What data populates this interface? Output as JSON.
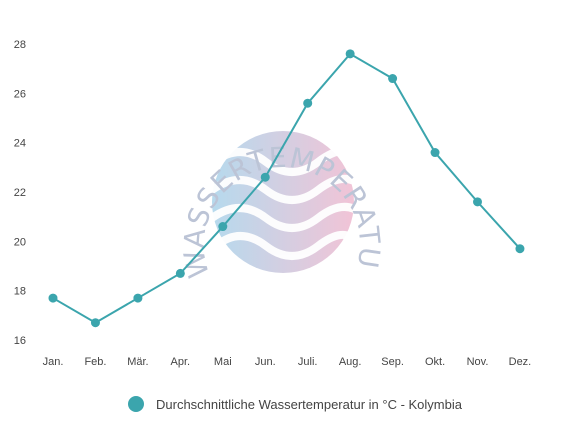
{
  "chart_data": {
    "type": "line",
    "categories": [
      "Jan.",
      "Feb.",
      "Mär.",
      "Apr.",
      "Mai",
      "Jun.",
      "Juli.",
      "Aug.",
      "Sep.",
      "Okt.",
      "Nov.",
      "Dez."
    ],
    "series": [
      {
        "name": "Durchschnittliche Wassertemperatur in °C - Kolymbia",
        "values": [
          17.7,
          16.7,
          17.7,
          18.7,
          20.6,
          22.6,
          25.6,
          27.6,
          26.6,
          23.6,
          21.6,
          19.7
        ]
      }
    ],
    "yticks": [
      16,
      18,
      20,
      22,
      24,
      26,
      28
    ],
    "ylim": [
      16,
      28
    ],
    "grid": false,
    "legend_position": "bottom",
    "colors": {
      "line": "#3ba5ad",
      "marker": "#3ba5ad"
    }
  },
  "watermark": {
    "text": "WASSERTEMPERATUR.ORG",
    "colors": {
      "left": "#a9d3ea",
      "right": "#efb9cf"
    }
  }
}
